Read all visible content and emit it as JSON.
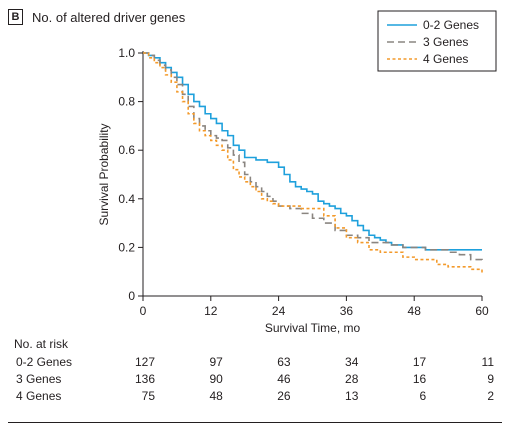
{
  "panel": {
    "letter": "B",
    "title": "No. of altered driver genes"
  },
  "colors": {
    "g02": "#1ea0dc",
    "g3": "#8a8580",
    "g4": "#f39a2b",
    "axis": "#231f20"
  },
  "chart_data": {
    "type": "line",
    "title": "",
    "xlabel": "Survival Time, mo",
    "ylabel": "Survival Probability",
    "xlim": [
      0,
      60
    ],
    "ylim": [
      0,
      1.0
    ],
    "xticks": [
      "0",
      "12",
      "24",
      "36",
      "48",
      "60"
    ],
    "yticks": [
      "0",
      "0.2",
      "0.4",
      "0.6",
      "0.8",
      "1.0"
    ],
    "legend_position": "top-right",
    "series": [
      {
        "name": "0-2 Genes",
        "x": [
          0,
          1,
          2,
          3,
          4,
          5,
          6,
          7,
          8,
          9,
          10,
          11,
          12,
          13,
          14,
          15,
          16,
          17,
          18,
          20,
          21,
          22,
          23,
          24,
          25,
          26,
          27,
          28,
          29,
          30,
          31,
          32,
          33,
          34,
          35,
          36,
          37,
          38,
          39,
          40,
          41,
          42,
          43,
          44,
          46,
          48,
          50,
          60
        ],
        "y": [
          1.0,
          0.99,
          0.98,
          0.96,
          0.94,
          0.92,
          0.9,
          0.87,
          0.83,
          0.8,
          0.78,
          0.75,
          0.73,
          0.71,
          0.68,
          0.66,
          0.62,
          0.6,
          0.57,
          0.56,
          0.56,
          0.55,
          0.55,
          0.53,
          0.5,
          0.47,
          0.45,
          0.44,
          0.43,
          0.42,
          0.39,
          0.38,
          0.37,
          0.36,
          0.34,
          0.33,
          0.31,
          0.29,
          0.27,
          0.25,
          0.24,
          0.23,
          0.22,
          0.21,
          0.2,
          0.2,
          0.19,
          0.19
        ]
      },
      {
        "name": "3 Genes",
        "x": [
          0,
          1,
          2,
          3,
          4,
          5,
          6,
          7,
          8,
          9,
          10,
          11,
          12,
          13,
          14,
          15,
          16,
          17,
          18,
          19,
          20,
          21,
          22,
          23,
          24,
          26,
          28,
          30,
          32,
          34,
          36,
          38,
          40,
          42,
          44,
          46,
          48,
          50,
          52,
          54,
          56,
          58,
          60
        ],
        "y": [
          1.0,
          0.99,
          0.97,
          0.95,
          0.93,
          0.9,
          0.87,
          0.83,
          0.78,
          0.73,
          0.7,
          0.68,
          0.66,
          0.65,
          0.64,
          0.61,
          0.58,
          0.55,
          0.5,
          0.47,
          0.45,
          0.43,
          0.41,
          0.39,
          0.37,
          0.36,
          0.34,
          0.32,
          0.3,
          0.27,
          0.25,
          0.24,
          0.22,
          0.22,
          0.21,
          0.2,
          0.2,
          0.19,
          0.19,
          0.18,
          0.17,
          0.15,
          0.14
        ]
      },
      {
        "name": "4 Genes",
        "x": [
          0,
          1,
          2,
          3,
          4,
          5,
          6,
          7,
          8,
          9,
          10,
          11,
          12,
          13,
          14,
          15,
          16,
          17,
          18,
          19,
          20,
          21,
          22,
          23,
          24,
          26,
          28,
          30,
          32,
          34,
          36,
          38,
          40,
          42,
          44,
          46,
          48,
          50,
          52,
          54,
          56,
          58,
          60
        ],
        "y": [
          1.0,
          0.98,
          0.96,
          0.94,
          0.91,
          0.88,
          0.84,
          0.8,
          0.75,
          0.71,
          0.68,
          0.66,
          0.64,
          0.62,
          0.6,
          0.56,
          0.52,
          0.49,
          0.47,
          0.45,
          0.43,
          0.4,
          0.39,
          0.38,
          0.37,
          0.37,
          0.36,
          0.36,
          0.33,
          0.28,
          0.24,
          0.22,
          0.19,
          0.18,
          0.18,
          0.16,
          0.15,
          0.15,
          0.13,
          0.12,
          0.12,
          0.11,
          0.09
        ]
      }
    ]
  },
  "risk_table": {
    "title": "No. at risk",
    "columns": [
      "0",
      "12",
      "24",
      "36",
      "48",
      "60"
    ],
    "rows": [
      {
        "label": "0-2 Genes",
        "values": [
          "127",
          "97",
          "63",
          "34",
          "17",
          "11"
        ]
      },
      {
        "label": "3 Genes",
        "values": [
          "136",
          "90",
          "46",
          "28",
          "16",
          "9"
        ]
      },
      {
        "label": "4 Genes",
        "values": [
          "75",
          "48",
          "26",
          "13",
          "6",
          "2"
        ]
      }
    ]
  }
}
